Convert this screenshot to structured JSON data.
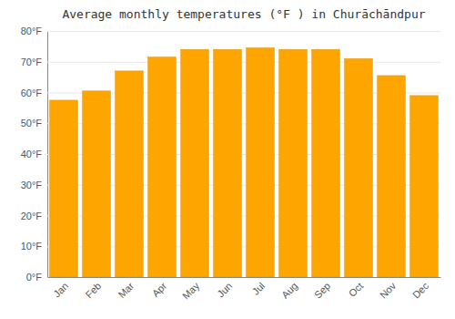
{
  "chart_data": {
    "type": "bar",
    "title": "Average monthly temperatures (°F ) in Churāchāndpur",
    "categories": [
      "Jan",
      "Feb",
      "Mar",
      "Apr",
      "May",
      "Jun",
      "Jul",
      "Aug",
      "Sep",
      "Oct",
      "Nov",
      "Dec"
    ],
    "values": [
      57.5,
      60.5,
      67,
      71.5,
      74,
      74,
      74.5,
      74,
      74,
      71,
      65.5,
      59
    ],
    "color": "#FFA500",
    "ylim": [
      0,
      80
    ],
    "yticks": [
      {
        "value": 0,
        "label": "0°F"
      },
      {
        "value": 10,
        "label": "10°F"
      },
      {
        "value": 20,
        "label": "20°F"
      },
      {
        "value": 30,
        "label": "30°F"
      },
      {
        "value": 40,
        "label": "40°F"
      },
      {
        "value": 50,
        "label": "50°F"
      },
      {
        "value": 60,
        "label": "60°F"
      },
      {
        "value": 70,
        "label": "70°F"
      },
      {
        "value": 80,
        "label": "80°F"
      }
    ],
    "grid": true
  }
}
